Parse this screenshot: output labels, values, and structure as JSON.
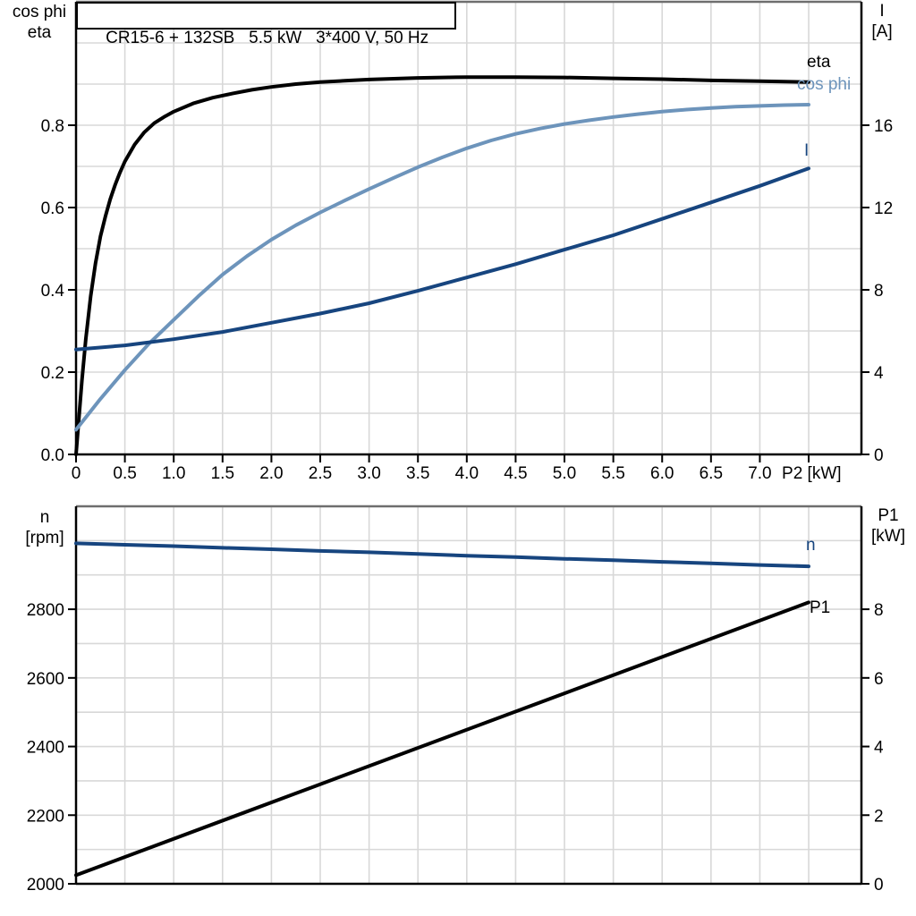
{
  "title": "CR15-6 + 132SB   5.5 kW   3*400 V, 50 Hz",
  "colors": {
    "eta": "#000000",
    "cos_phi": "#6d94bb",
    "current": "#17457f",
    "speed": "#17457f",
    "p1": "#000000",
    "grid": "#d8d8d8",
    "frame": "#6e6e6e",
    "axis": "#000000",
    "text": "#000000",
    "background": "#ffffff"
  },
  "chart_data": [
    {
      "type": "line",
      "title": "CR15-6 + 132SB   5.5 kW   3*400 V, 50 Hz",
      "x_axis": {
        "label": "P2 [kW]",
        "range": [
          0,
          8.04
        ],
        "ticks": [
          0,
          0.5,
          1.0,
          1.5,
          2.0,
          2.5,
          3.0,
          3.5,
          4.0,
          4.5,
          5.0,
          5.5,
          6.0,
          6.5,
          7.0,
          7.5
        ],
        "tick_labels": [
          "0",
          "0.5",
          "1.0",
          "1.5",
          "2.0",
          "2.5",
          "3.0",
          "3.5",
          "4.0",
          "4.5",
          "5.0",
          "5.5",
          "6.0",
          "6.5",
          "7.0",
          ""
        ],
        "grid": [
          0.5,
          1.0,
          1.5,
          2.0,
          2.5,
          3.0,
          3.5,
          4.0,
          4.5,
          5.0,
          5.5,
          6.0,
          6.5,
          7.0,
          7.5
        ]
      },
      "left_axis": {
        "label_lines": [
          "cos phi",
          "eta"
        ],
        "range": [
          0,
          1.1
        ],
        "ticks": [
          0.0,
          0.2,
          0.4,
          0.6,
          0.8
        ],
        "tick_labels": [
          "0.0",
          "0.2",
          "0.4",
          "0.6",
          "0.8"
        ],
        "grid": [
          0.1,
          0.2,
          0.3,
          0.4,
          0.5,
          0.6,
          0.7,
          0.8,
          0.9,
          1.0
        ]
      },
      "right_axis": {
        "label_lines": [
          "I",
          "[A]"
        ],
        "range": [
          0,
          22
        ],
        "ticks": [
          0,
          4,
          8,
          12,
          16
        ],
        "tick_labels": [
          "0",
          "4",
          "8",
          "12",
          "16"
        ]
      },
      "series": [
        {
          "name": "eta",
          "axis": "left",
          "color_key": "eta",
          "points": [
            [
              0,
              0
            ],
            [
              0.03,
              0.09
            ],
            [
              0.06,
              0.18
            ],
            [
              0.1,
              0.28
            ],
            [
              0.15,
              0.385
            ],
            [
              0.2,
              0.465
            ],
            [
              0.25,
              0.53
            ],
            [
              0.3,
              0.578
            ],
            [
              0.35,
              0.62
            ],
            [
              0.4,
              0.655
            ],
            [
              0.45,
              0.685
            ],
            [
              0.5,
              0.712
            ],
            [
              0.6,
              0.753
            ],
            [
              0.7,
              0.783
            ],
            [
              0.8,
              0.805
            ],
            [
              0.9,
              0.82
            ],
            [
              1.0,
              0.833
            ],
            [
              1.2,
              0.853
            ],
            [
              1.4,
              0.867
            ],
            [
              1.6,
              0.877
            ],
            [
              1.8,
              0.886
            ],
            [
              2.0,
              0.893
            ],
            [
              2.25,
              0.9
            ],
            [
              2.5,
              0.905
            ],
            [
              2.75,
              0.908
            ],
            [
              3.0,
              0.911
            ],
            [
              3.25,
              0.913
            ],
            [
              3.5,
              0.915
            ],
            [
              3.75,
              0.916
            ],
            [
              4.0,
              0.917
            ],
            [
              4.5,
              0.917
            ],
            [
              5.0,
              0.916
            ],
            [
              5.5,
              0.914
            ],
            [
              6.0,
              0.912
            ],
            [
              6.5,
              0.909
            ],
            [
              7.0,
              0.907
            ],
            [
              7.5,
              0.905
            ]
          ]
        },
        {
          "name": "cos phi",
          "axis": "left",
          "color_key": "cos_phi",
          "points": [
            [
              0,
              0.06
            ],
            [
              0.25,
              0.135
            ],
            [
              0.5,
              0.205
            ],
            [
              0.75,
              0.27
            ],
            [
              1.0,
              0.327
            ],
            [
              1.25,
              0.384
            ],
            [
              1.5,
              0.437
            ],
            [
              1.75,
              0.482
            ],
            [
              2.0,
              0.522
            ],
            [
              2.25,
              0.557
            ],
            [
              2.5,
              0.588
            ],
            [
              2.75,
              0.617
            ],
            [
              3.0,
              0.645
            ],
            [
              3.25,
              0.672
            ],
            [
              3.5,
              0.698
            ],
            [
              3.75,
              0.722
            ],
            [
              4.0,
              0.744
            ],
            [
              4.25,
              0.763
            ],
            [
              4.5,
              0.779
            ],
            [
              4.75,
              0.792
            ],
            [
              5.0,
              0.803
            ],
            [
              5.25,
              0.812
            ],
            [
              5.5,
              0.82
            ],
            [
              5.75,
              0.827
            ],
            [
              6.0,
              0.833
            ],
            [
              6.25,
              0.838
            ],
            [
              6.5,
              0.842
            ],
            [
              6.75,
              0.845
            ],
            [
              7.0,
              0.847
            ],
            [
              7.25,
              0.849
            ],
            [
              7.5,
              0.85
            ]
          ]
        },
        {
          "name": "I",
          "axis": "right",
          "color_key": "current",
          "points": [
            [
              0,
              5.1
            ],
            [
              0.5,
              5.3
            ],
            [
              1.0,
              5.6
            ],
            [
              1.5,
              5.95
            ],
            [
              2.0,
              6.4
            ],
            [
              2.5,
              6.85
            ],
            [
              3.0,
              7.35
            ],
            [
              3.5,
              7.95
            ],
            [
              4.0,
              8.6
            ],
            [
              4.5,
              9.25
            ],
            [
              5.0,
              9.95
            ],
            [
              5.5,
              10.65
            ],
            [
              6.0,
              11.45
            ],
            [
              6.5,
              12.25
            ],
            [
              7.0,
              13.05
            ],
            [
              7.5,
              13.9
            ]
          ]
        }
      ]
    },
    {
      "type": "line",
      "title": "",
      "x_axis": {
        "label": "",
        "range": [
          0,
          8.04
        ],
        "ticks": [],
        "tick_labels": [],
        "grid": [
          0.5,
          1.0,
          1.5,
          2.0,
          2.5,
          3.0,
          3.5,
          4.0,
          4.5,
          5.0,
          5.5,
          6.0,
          6.5,
          7.0,
          7.5
        ]
      },
      "left_axis": {
        "label_lines": [
          "n",
          "[rpm]"
        ],
        "range": [
          2000,
          3100
        ],
        "ticks": [
          2000,
          2200,
          2400,
          2600,
          2800
        ],
        "tick_labels": [
          "2000",
          "2200",
          "2400",
          "2600",
          "2800"
        ],
        "grid": [
          2100,
          2200,
          2300,
          2400,
          2500,
          2600,
          2700,
          2800,
          2900,
          3000
        ]
      },
      "right_axis": {
        "label_lines": [
          "P1",
          "[kW]"
        ],
        "range": [
          0,
          11
        ],
        "ticks": [
          0,
          2,
          4,
          6,
          8
        ],
        "tick_labels": [
          "0",
          "2",
          "4",
          "6",
          "8"
        ]
      },
      "series": [
        {
          "name": "n",
          "axis": "left",
          "color_key": "speed",
          "points": [
            [
              0,
              2992
            ],
            [
              0.5,
              2988
            ],
            [
              1.0,
              2984
            ],
            [
              1.5,
              2979
            ],
            [
              2.0,
              2975
            ],
            [
              2.5,
              2970
            ],
            [
              3.0,
              2966
            ],
            [
              3.5,
              2961
            ],
            [
              4.0,
              2956
            ],
            [
              4.5,
              2952
            ],
            [
              5.0,
              2947
            ],
            [
              5.5,
              2943
            ],
            [
              6.0,
              2938
            ],
            [
              6.5,
              2934
            ],
            [
              7.0,
              2929
            ],
            [
              7.5,
              2925
            ]
          ]
        },
        {
          "name": "P1",
          "axis": "right",
          "color_key": "p1",
          "points": [
            [
              0,
              0.25
            ],
            [
              2.5,
              2.9
            ],
            [
              5.0,
              5.55
            ],
            [
              7.5,
              8.2
            ]
          ]
        }
      ]
    }
  ]
}
